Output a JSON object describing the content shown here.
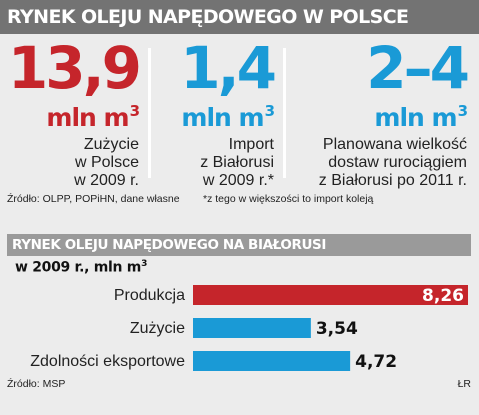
{
  "header": {
    "title": "RYNEK OLEJU NAPĘDOWEGO W POLSCE"
  },
  "stats": [
    {
      "value": "13,9",
      "unit": "mln m",
      "unit_sup": "3",
      "desc": [
        "Zużycie",
        "w Polsce",
        "w 2009 r."
      ],
      "color": "#c5252b"
    },
    {
      "value": "1,4",
      "unit": "mln m",
      "unit_sup": "3",
      "desc": [
        "Import",
        "z Białorusi",
        "w 2009 r.*"
      ],
      "color": "#1a9ad6"
    },
    {
      "value": "2–4",
      "unit": "mln m",
      "unit_sup": "3",
      "desc": [
        "Planowana wielkość",
        "dostaw rurociągiem",
        "z Białorusi po 2011 r."
      ],
      "color": "#1a9ad6"
    }
  ],
  "source_top": "Źródło: OLPP, POPiHN, dane własne",
  "footnote": "*z tego w większości to import koleją",
  "chart_data": {
    "type": "bar",
    "orientation": "horizontal",
    "title": "RYNEK OLEJU NAPĘDOWEGO NA BIAŁORUSI",
    "subtitle": "w 2009 r., mln m",
    "subtitle_sup": "3",
    "categories": [
      "Produkcja",
      "Zużycie",
      "Zdolności eksportowe"
    ],
    "values": [
      8.26,
      3.54,
      4.72
    ],
    "value_labels": [
      "8,26",
      "3,54",
      "4,72"
    ],
    "bar_colors": [
      "#c5252b",
      "#1a9ad6",
      "#1a9ad6"
    ],
    "xlim": [
      0,
      8.26
    ],
    "grid": false,
    "legend": "none"
  },
  "source_bottom": "Źródło: MSP",
  "credit": "ŁR"
}
